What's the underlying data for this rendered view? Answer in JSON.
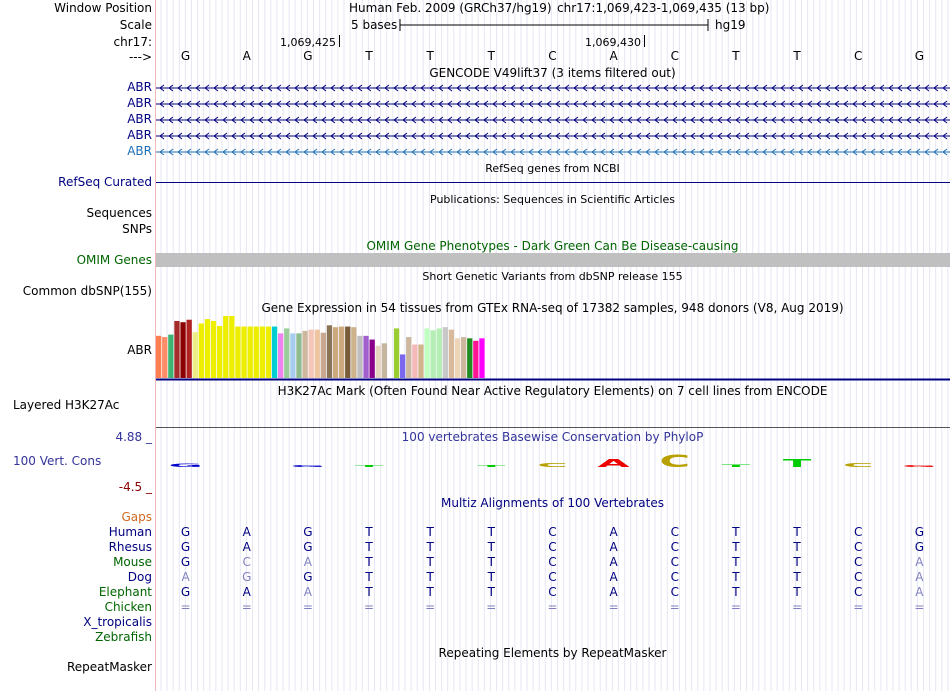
{
  "header": {
    "window_position_label": "Window Position",
    "scale_label": "Scale",
    "chrom_label": "chr17:",
    "strand_label": "--->",
    "assembly_text": "Human Feb. 2009 (GRCh37/hg19)",
    "coords_text": "chr17:1,069,423-1,069,435 (13 bp)",
    "scale_text": "5 bases",
    "db_text": "hg19",
    "tick_1": "1,069,425",
    "tick_2": "1,069,430",
    "bases": [
      "G",
      "A",
      "G",
      "T",
      "T",
      "T",
      "C",
      "A",
      "C",
      "T",
      "T",
      "C",
      "G"
    ]
  },
  "tracks": {
    "gencode": {
      "title": "GENCODE V49lift37 (3 items filtered out)",
      "items": [
        "ABR",
        "ABR",
        "ABR",
        "ABR",
        "ABR"
      ]
    },
    "refseq": {
      "title": "RefSeq genes from NCBI",
      "label": "RefSeq Curated"
    },
    "publications": {
      "title": "Publications: Sequences in Scientific Articles",
      "label": "Sequences",
      "snp_label": "SNPs"
    },
    "omim": {
      "title": "OMIM Gene Phenotypes - Dark Green Can Be Disease-causing",
      "label": "OMIM Genes"
    },
    "dbsnp": {
      "title": "Short Genetic Variants from dbSNP release 155",
      "label": "Common dbSNP(155)"
    },
    "gtex": {
      "title": "Gene Expression in 54 tissues from GTEx RNA-seq of 17382 samples, 948 donors (V8, Aug 2019)",
      "label": "ABR",
      "bars": [
        {
          "color": "#ff7f50",
          "v": 0.68
        },
        {
          "color": "#ff8c69",
          "v": 0.66
        },
        {
          "color": "#3cb371",
          "v": 0.7
        },
        {
          "color": "#a52a2a",
          "v": 0.92
        },
        {
          "color": "#8b0000",
          "v": 0.9
        },
        {
          "color": "#b22222",
          "v": 0.94
        },
        {
          "color": "#eeee88",
          "v": 0.74
        },
        {
          "color": "#eeee00",
          "v": 0.88
        },
        {
          "color": "#eeee00",
          "v": 0.95
        },
        {
          "color": "#eeee00",
          "v": 0.92
        },
        {
          "color": "#eeee00",
          "v": 0.84
        },
        {
          "color": "#eeee00",
          "v": 1.0
        },
        {
          "color": "#eeee00",
          "v": 1.0
        },
        {
          "color": "#eeee00",
          "v": 0.83
        },
        {
          "color": "#eeee00",
          "v": 0.83
        },
        {
          "color": "#eeee00",
          "v": 0.83
        },
        {
          "color": "#eeee00",
          "v": 0.83
        },
        {
          "color": "#eeee00",
          "v": 0.83
        },
        {
          "color": "#eeee00",
          "v": 0.83
        },
        {
          "color": "#00ced1",
          "v": 0.83
        },
        {
          "color": "#ee82ee",
          "v": 0.72
        },
        {
          "color": "#9bcd9b",
          "v": 0.8
        },
        {
          "color": "#a6cdf0",
          "v": 0.72
        },
        {
          "color": "#8fbc8f",
          "v": 0.72
        },
        {
          "color": "#cdb79e",
          "v": 0.76
        },
        {
          "color": "#f5c5b8",
          "v": 0.78
        },
        {
          "color": "#eec5a0",
          "v": 0.78
        },
        {
          "color": "#c8a890",
          "v": 0.73
        },
        {
          "color": "#8b7355",
          "v": 0.85
        },
        {
          "color": "#cdaa7d",
          "v": 0.82
        },
        {
          "color": "#cdaa7d",
          "v": 0.83
        },
        {
          "color": "#7a5c3a",
          "v": 0.83
        },
        {
          "color": "#cdb38b",
          "v": 0.82
        },
        {
          "color": "#bebebe",
          "v": 0.68
        },
        {
          "color": "#a05fcd",
          "v": 0.68
        },
        {
          "color": "#8b008b",
          "v": 0.62
        },
        {
          "color": "#e6d5c0",
          "v": 0.52
        },
        {
          "color": "#c6b59f",
          "v": 0.56
        },
        {
          "color": "#a6a6a6",
          "v": 0.0
        },
        {
          "color": "#9acd32",
          "v": 0.8
        },
        {
          "color": "#7a67ee",
          "v": 0.38
        },
        {
          "color": "#cdb79e",
          "v": 0.66
        },
        {
          "color": "#f5b8b8",
          "v": 0.54
        },
        {
          "color": "#d2b48c",
          "v": 0.54
        },
        {
          "color": "#c1ffc1",
          "v": 0.8
        },
        {
          "color": "#b4eeb4",
          "v": 0.77
        },
        {
          "color": "#b4eeb4",
          "v": 0.8
        },
        {
          "color": "#c8c8c8",
          "v": 0.82
        },
        {
          "color": "#d9b99b",
          "v": 0.78
        },
        {
          "color": "#eed5b7",
          "v": 0.64
        },
        {
          "color": "#cdb79e",
          "v": 0.66
        },
        {
          "color": "#228b22",
          "v": 0.64
        },
        {
          "color": "#ff1493",
          "v": 0.6
        },
        {
          "color": "#ff00ff",
          "v": 0.64
        }
      ]
    },
    "h3k27ac": {
      "title": "H3K27Ac Mark (Often Found Near Active Regulatory Elements) on 7 cell lines from ENCODE",
      "label": "Layered H3K27Ac"
    },
    "phylop": {
      "title": "100 vertebrates Basewise Conservation by PhyloP",
      "label": "100 Vert. Cons",
      "ymax": "4.88 _",
      "ymin": "-4.5 _",
      "glyphs": [
        {
          "base": "G",
          "color": "#0000cc",
          "h": 0.25
        },
        {
          "base": "A",
          "color": "#0000cc",
          "h": 0.0
        },
        {
          "base": "G",
          "color": "#0000cc",
          "h": 0.15
        },
        {
          "base": "T",
          "color": "#00cc00",
          "h": 0.15
        },
        {
          "base": "T",
          "color": "#00cc00",
          "h": 0.0
        },
        {
          "base": "T",
          "color": "#00cc00",
          "h": 0.12
        },
        {
          "base": "C",
          "color": "#b8a000",
          "h": 0.3
        },
        {
          "base": "A",
          "color": "#ee0000",
          "h": 0.55
        },
        {
          "base": "C",
          "color": "#b8a000",
          "h": 0.9
        },
        {
          "base": "T",
          "color": "#00cc00",
          "h": 0.2
        },
        {
          "base": "T",
          "color": "#00cc00",
          "h": 0.55
        },
        {
          "base": "C",
          "color": "#b8a000",
          "h": 0.3
        },
        {
          "base": "G",
          "color": "#ee0000",
          "h": 0.15
        }
      ]
    },
    "multiz": {
      "title": "Multiz Alignments of 100 Vertebrates",
      "gaps_label": "Gaps",
      "species": [
        {
          "name": "Human",
          "seq": [
            "G",
            "A",
            "G",
            "T",
            "T",
            "T",
            "C",
            "A",
            "C",
            "T",
            "T",
            "C",
            "G"
          ]
        },
        {
          "name": "Rhesus",
          "seq": [
            "G",
            "A",
            "G",
            "T",
            "T",
            "T",
            "C",
            "A",
            "C",
            "T",
            "T",
            "C",
            "G"
          ]
        },
        {
          "name": "Mouse",
          "seq": [
            "G",
            "C",
            "A",
            "T",
            "T",
            "T",
            "C",
            "A",
            "C",
            "T",
            "T",
            "C",
            "A"
          ]
        },
        {
          "name": "Dog",
          "seq": [
            "A",
            "G",
            "G",
            "T",
            "T",
            "T",
            "C",
            "A",
            "C",
            "T",
            "T",
            "C",
            "A"
          ]
        },
        {
          "name": "Elephant",
          "seq": [
            "G",
            "A",
            "A",
            "T",
            "T",
            "T",
            "C",
            "A",
            "C",
            "T",
            "T",
            "C",
            "A"
          ]
        },
        {
          "name": "Chicken",
          "seq": [
            "=",
            "=",
            "=",
            "=",
            "=",
            "=",
            "=",
            "=",
            "=",
            "=",
            "=",
            "=",
            "="
          ]
        },
        {
          "name": "X_tropicalis",
          "seq": []
        },
        {
          "name": "Zebrafish",
          "seq": []
        }
      ]
    },
    "repeatmasker": {
      "title": "Repeating Elements by RepeatMasker",
      "label": "RepeatMasker"
    }
  },
  "colors": {
    "blue_text": "#000080",
    "omim_green": "#006400",
    "abr_link": "#000080",
    "gaps": "#d2691e",
    "phylop_blue": "#333399",
    "phylop_red": "#8b0000",
    "dim": "#8080c0"
  }
}
